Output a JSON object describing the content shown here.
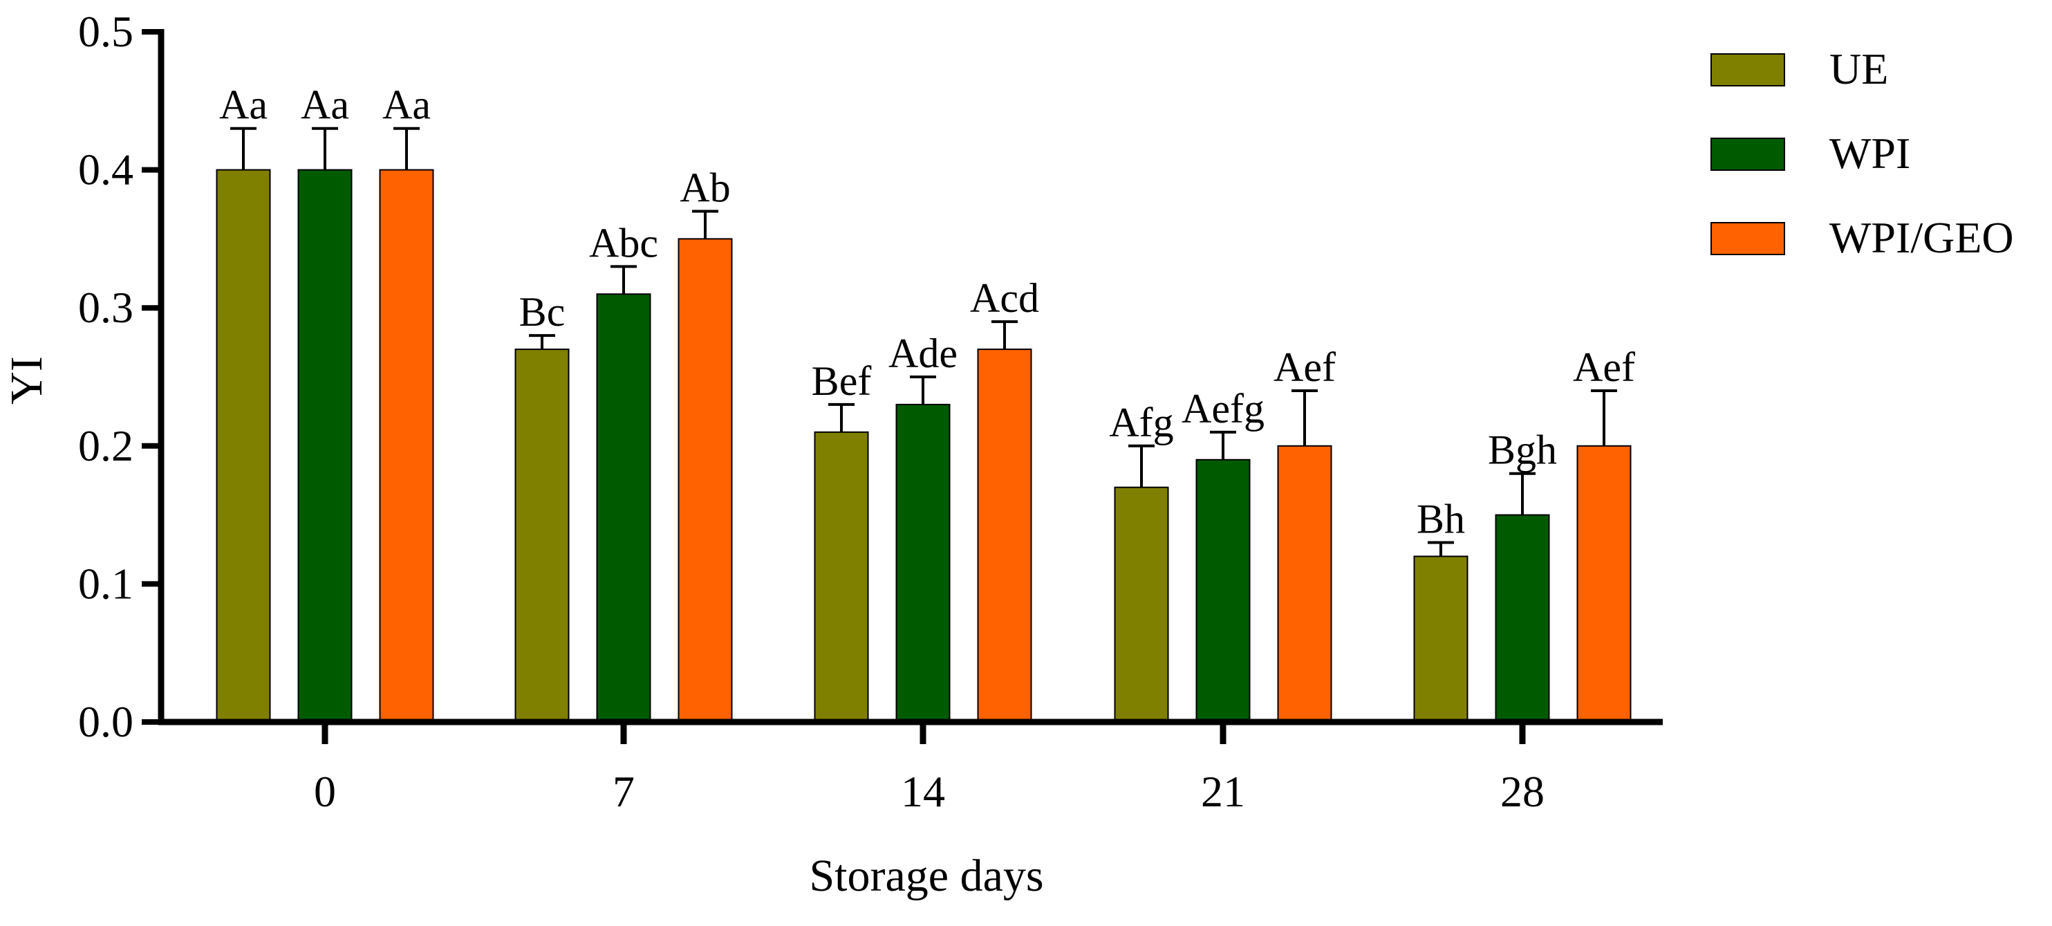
{
  "chart_data": {
    "type": "bar",
    "title": "",
    "xlabel": "Storage days",
    "ylabel": "YI",
    "categories": [
      "0",
      "7",
      "14",
      "21",
      "28"
    ],
    "ylim": [
      0,
      0.5
    ],
    "yticks": [
      "0.0",
      "0.1",
      "0.2",
      "0.3",
      "0.4",
      "0.5"
    ],
    "ytick_values": [
      0,
      0.1,
      0.2,
      0.3,
      0.4,
      0.5
    ],
    "grid": false,
    "legend_position": "top-right",
    "series": [
      {
        "name": "UE",
        "color": "#808000",
        "values": [
          0.4,
          0.27,
          0.21,
          0.17,
          0.12
        ],
        "errors": [
          0.03,
          0.01,
          0.02,
          0.03,
          0.01
        ],
        "labels": [
          "Aa",
          "Bc",
          "Bef",
          "Afg",
          "Bh"
        ]
      },
      {
        "name": "WPI",
        "color": "#005A00",
        "values": [
          0.4,
          0.31,
          0.23,
          0.19,
          0.15
        ],
        "errors": [
          0.03,
          0.02,
          0.02,
          0.02,
          0.03
        ],
        "labels": [
          "Aa",
          "Abc",
          "Ade",
          "Aefg",
          "Bgh"
        ]
      },
      {
        "name": "WPI/GEO",
        "color": "#FF6200",
        "values": [
          0.4,
          0.35,
          0.27,
          0.2,
          0.2
        ],
        "errors": [
          0.03,
          0.02,
          0.02,
          0.04,
          0.04
        ],
        "labels": [
          "Aa",
          "Ab",
          "Acd",
          "Aef",
          "Aef"
        ]
      }
    ]
  }
}
